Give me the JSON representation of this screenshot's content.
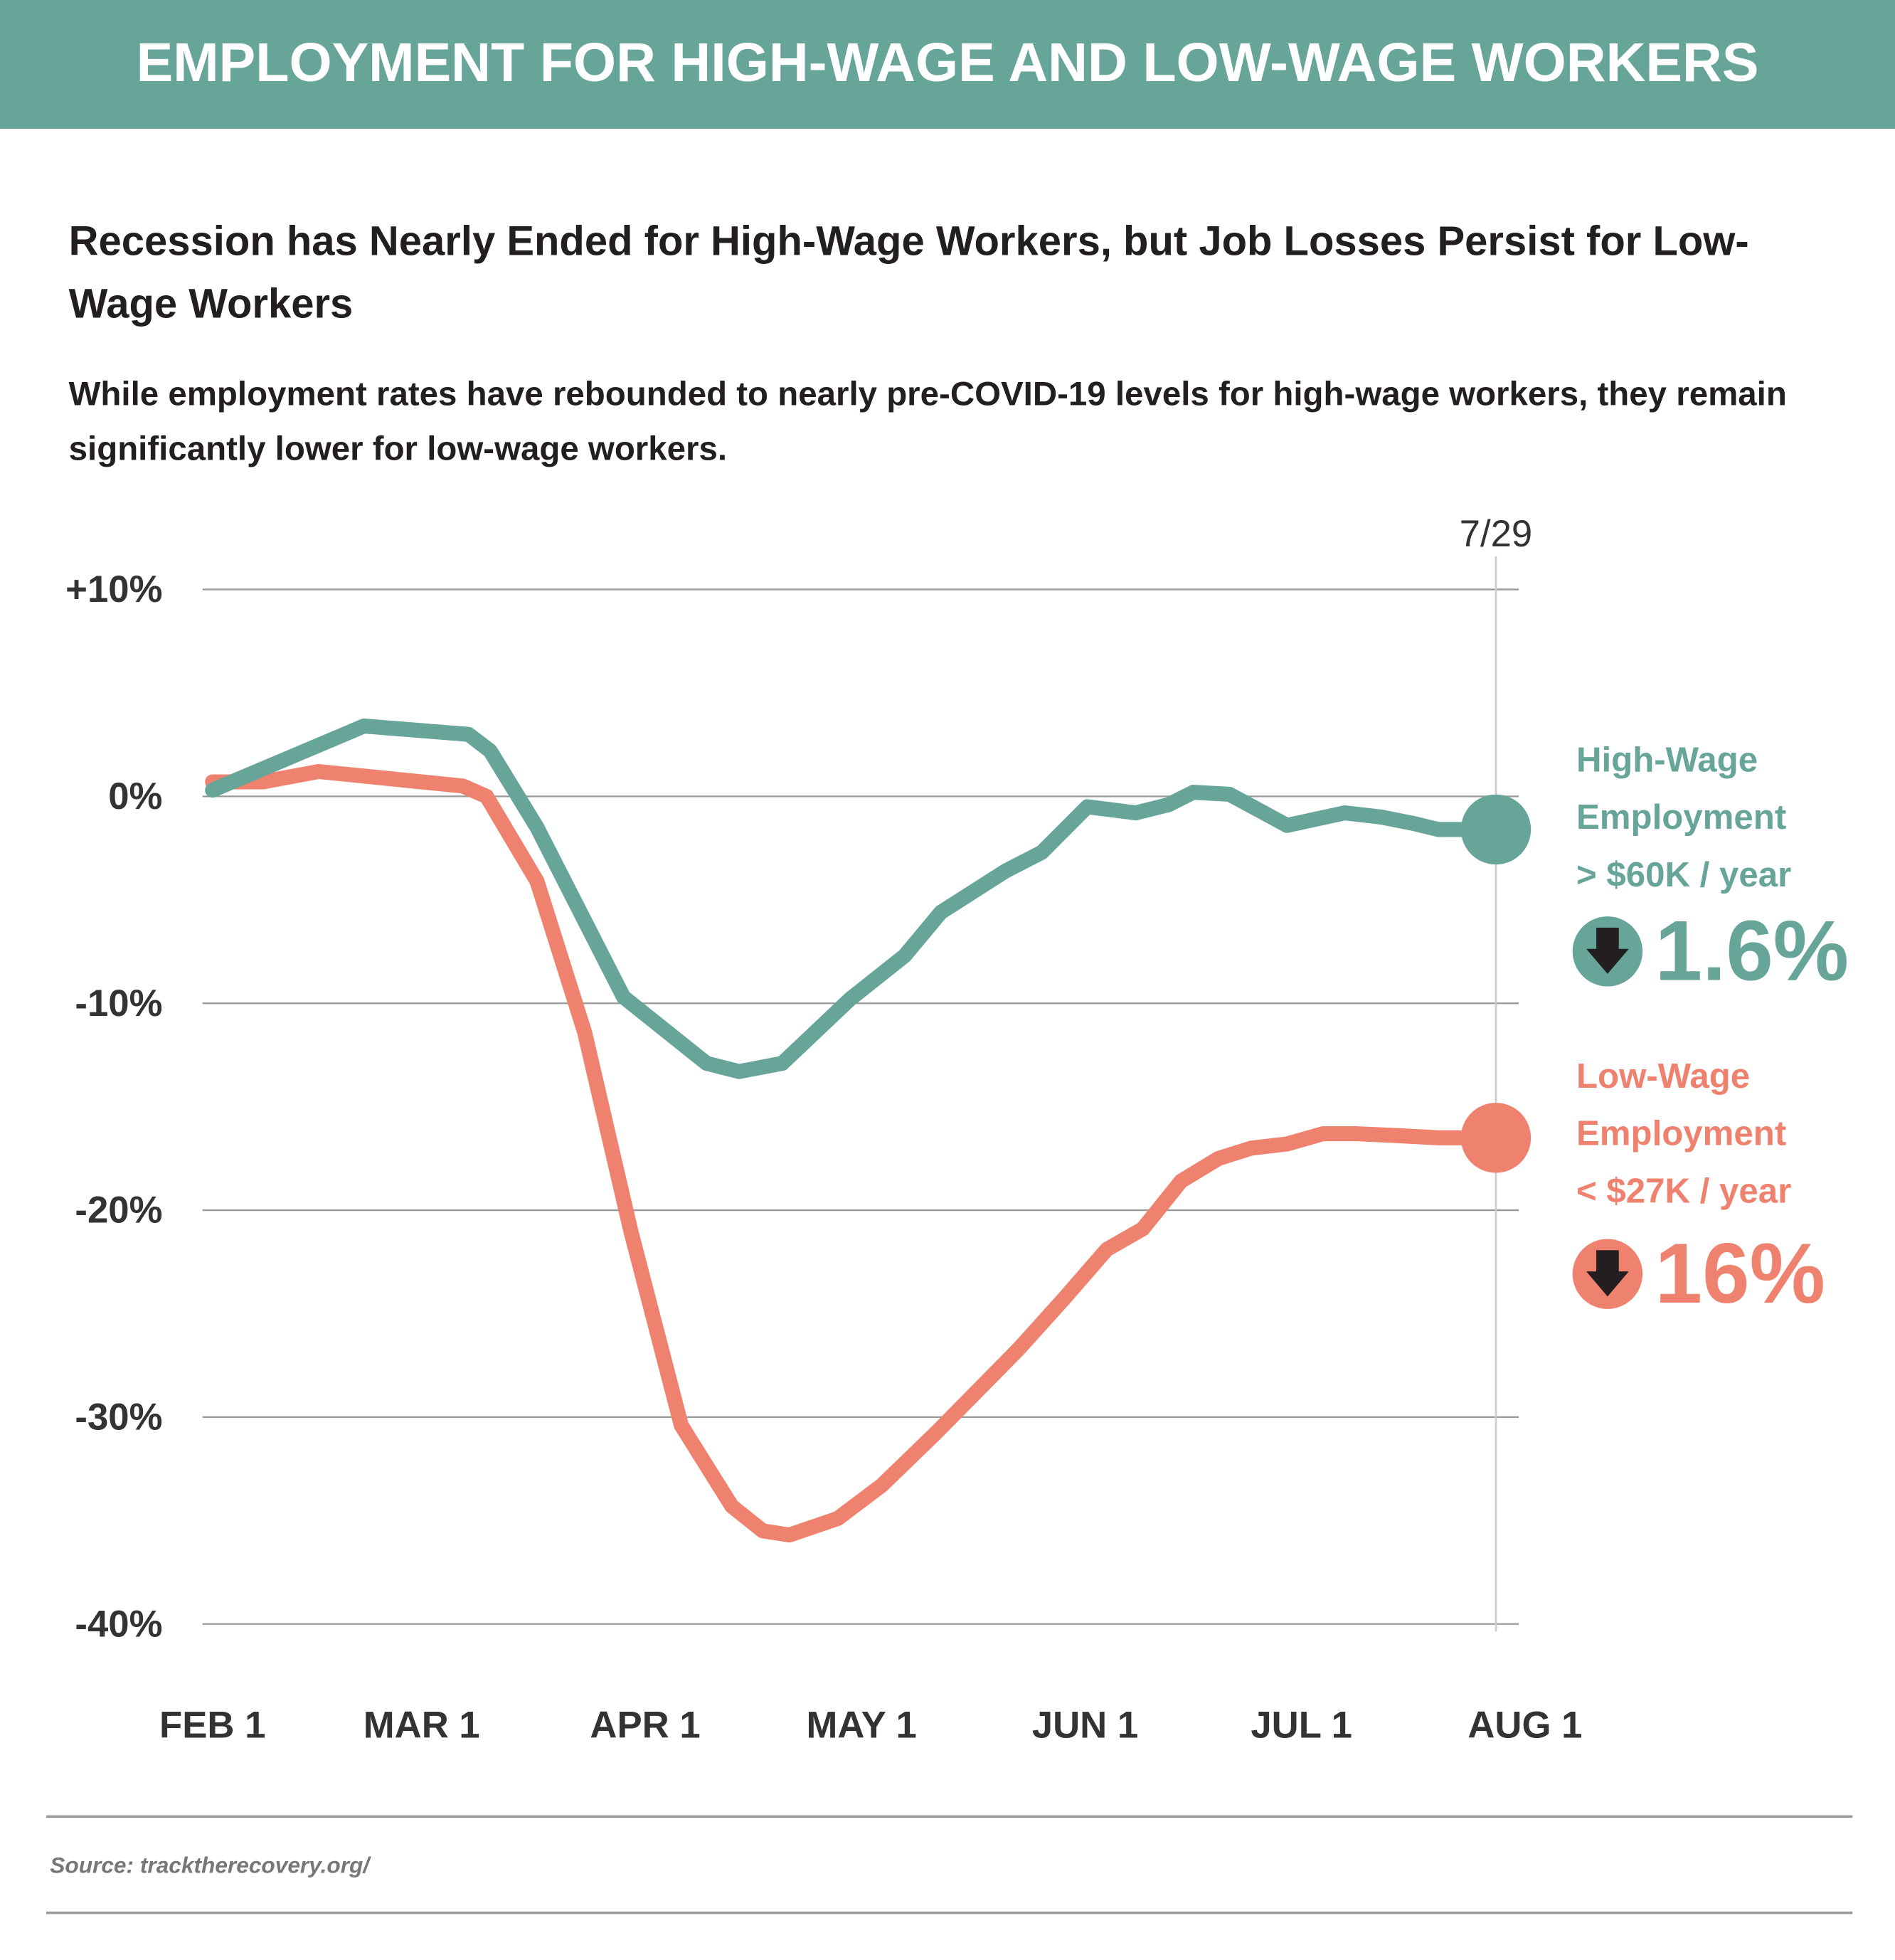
{
  "header": {
    "title": "EMPLOYMENT FOR HIGH-WAGE AND LOW-WAGE WORKERS"
  },
  "subtitle": "Recession has Nearly Ended for High-Wage Workers, but Job Losses Persist for Low-Wage Workers",
  "description": "While employment rates have rebounded to nearly pre-COVID-19 levels for high-wage workers, they remain significantly lower for low-wage workers.",
  "colors": {
    "high": "#67a599",
    "low": "#ef826e",
    "header": "#67a599"
  },
  "chart_data": {
    "type": "line",
    "x_unit": "days since Feb 1",
    "xlim": [
      0,
      182
    ],
    "ylim": [
      -40,
      10
    ],
    "y_ticks": [
      10,
      0,
      -10,
      -20,
      -30,
      -40
    ],
    "y_tick_labels": [
      "+10%",
      "0%",
      "-10%",
      "-20%",
      "-30%",
      "-40%"
    ],
    "x_ticks": [
      0,
      29,
      60,
      90,
      121,
      151,
      182
    ],
    "x_tick_labels": [
      "FEB 1",
      "MAR 1",
      "APR 1",
      "MAY 1",
      "JUN 1",
      "JUL 1",
      "AUG 1"
    ],
    "marker": {
      "x": 179,
      "label": "7/29"
    },
    "grid": true,
    "series": [
      {
        "name": "High-Wage Employment",
        "key": "high",
        "x": [
          0,
          21,
          35.5,
          38.5,
          45,
          57,
          68.5,
          73,
          79,
          88.4,
          96,
          101,
          110,
          115,
          121.3,
          128,
          132.6,
          136,
          141,
          149,
          157,
          162,
          166.4,
          170,
          179
        ],
        "y": [
          0.3,
          3.4,
          3.0,
          2.2,
          -1.5,
          -9.7,
          -12.9,
          -13.3,
          -12.9,
          -9.8,
          -7.7,
          -5.6,
          -3.6,
          -2.7,
          -0.5,
          -0.8,
          -0.4,
          0.2,
          0.1,
          -1.4,
          -0.8,
          -1.0,
          -1.3,
          -1.6,
          -1.6
        ]
      },
      {
        "name": "Low-Wage Employment",
        "key": "low",
        "x": [
          0,
          7,
          14.7,
          34.7,
          38,
          45,
          51.6,
          58,
          65,
          72,
          76.3,
          80,
          86.7,
          92.8,
          100.5,
          111.8,
          118,
          124,
          129,
          134.3,
          139.5,
          144,
          149,
          154,
          158.5,
          164.5,
          170,
          179
        ],
        "y": [
          0.7,
          0.7,
          1.2,
          0.5,
          0,
          -4.1,
          -11.4,
          -21.0,
          -30.4,
          -34.3,
          -35.5,
          -35.7,
          -34.9,
          -33.3,
          -30.7,
          -26.7,
          -24.3,
          -21.9,
          -20.9,
          -18.6,
          -17.5,
          -17.0,
          -16.8,
          -16.3,
          -16.3,
          -16.4,
          -16.5,
          -16.5
        ]
      }
    ]
  },
  "legend": {
    "high": {
      "line1": "High-Wage",
      "line2": "Employment",
      "line3": "> $60K / year",
      "change": "1.6%",
      "direction": "down"
    },
    "low": {
      "line1": "Low-Wage",
      "line2": "Employment",
      "line3": "< $27K / year",
      "change": "16%",
      "direction": "down"
    }
  },
  "source": "Source: tracktherecovery.org/"
}
